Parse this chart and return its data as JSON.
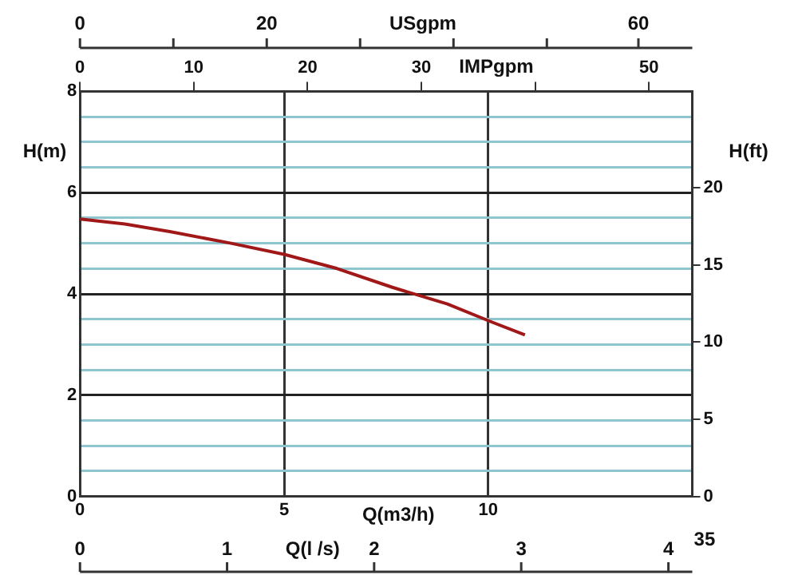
{
  "chart_data": {
    "type": "line",
    "xlabel": "Q(m3/h)",
    "ylabel": "H(m)",
    "y2label": "H(ft)",
    "x2label": "IMPgpm",
    "annotations": [
      "USgpm",
      "0",
      "20",
      "60",
      "Q(l /s)",
      "0",
      "1",
      "2",
      "3",
      "4",
      "35"
    ],
    "xlim": [
      0,
      15
    ],
    "xticks": [
      0,
      5,
      10,
      {
        "value": 15,
        "label": null
      }
    ],
    "x2lim": [
      0,
      53.8
    ],
    "x2ticks": [
      0,
      10,
      20,
      30,
      {
        "value": 40,
        "label": null
      },
      50
    ],
    "ylim": [
      0,
      8
    ],
    "yticks": [
      0,
      {
        "value": 0.5,
        "label": null
      },
      {
        "value": 1,
        "label": null
      },
      {
        "value": 1.5,
        "label": null
      },
      2,
      {
        "value": 2.5,
        "label": null
      },
      {
        "value": 3,
        "label": null
      },
      {
        "value": 3.5,
        "label": null
      },
      4,
      {
        "value": 4.5,
        "label": null
      },
      {
        "value": 5,
        "label": null
      },
      {
        "value": 5.5,
        "label": null
      },
      6,
      {
        "value": 6.5,
        "label": null
      },
      {
        "value": 7,
        "label": null
      },
      {
        "value": 7.5,
        "label": null
      },
      8
    ],
    "y2lim": [
      0,
      26.25
    ],
    "y2ticks": [
      0,
      5,
      10,
      15,
      20
    ],
    "grid": true,
    "marker": "none",
    "line_style": "solid",
    "series": [
      {
        "color": "#a01818",
        "x": [
          0,
          1.1,
          2.2,
          3.7,
          5.0,
          6.3,
          7.65,
          9.0,
          10.1,
          10.9
        ],
        "values": [
          5.48,
          5.38,
          5.23,
          5.0,
          4.78,
          4.5,
          4.13,
          3.8,
          3.44,
          3.19
        ]
      }
    ]
  }
}
